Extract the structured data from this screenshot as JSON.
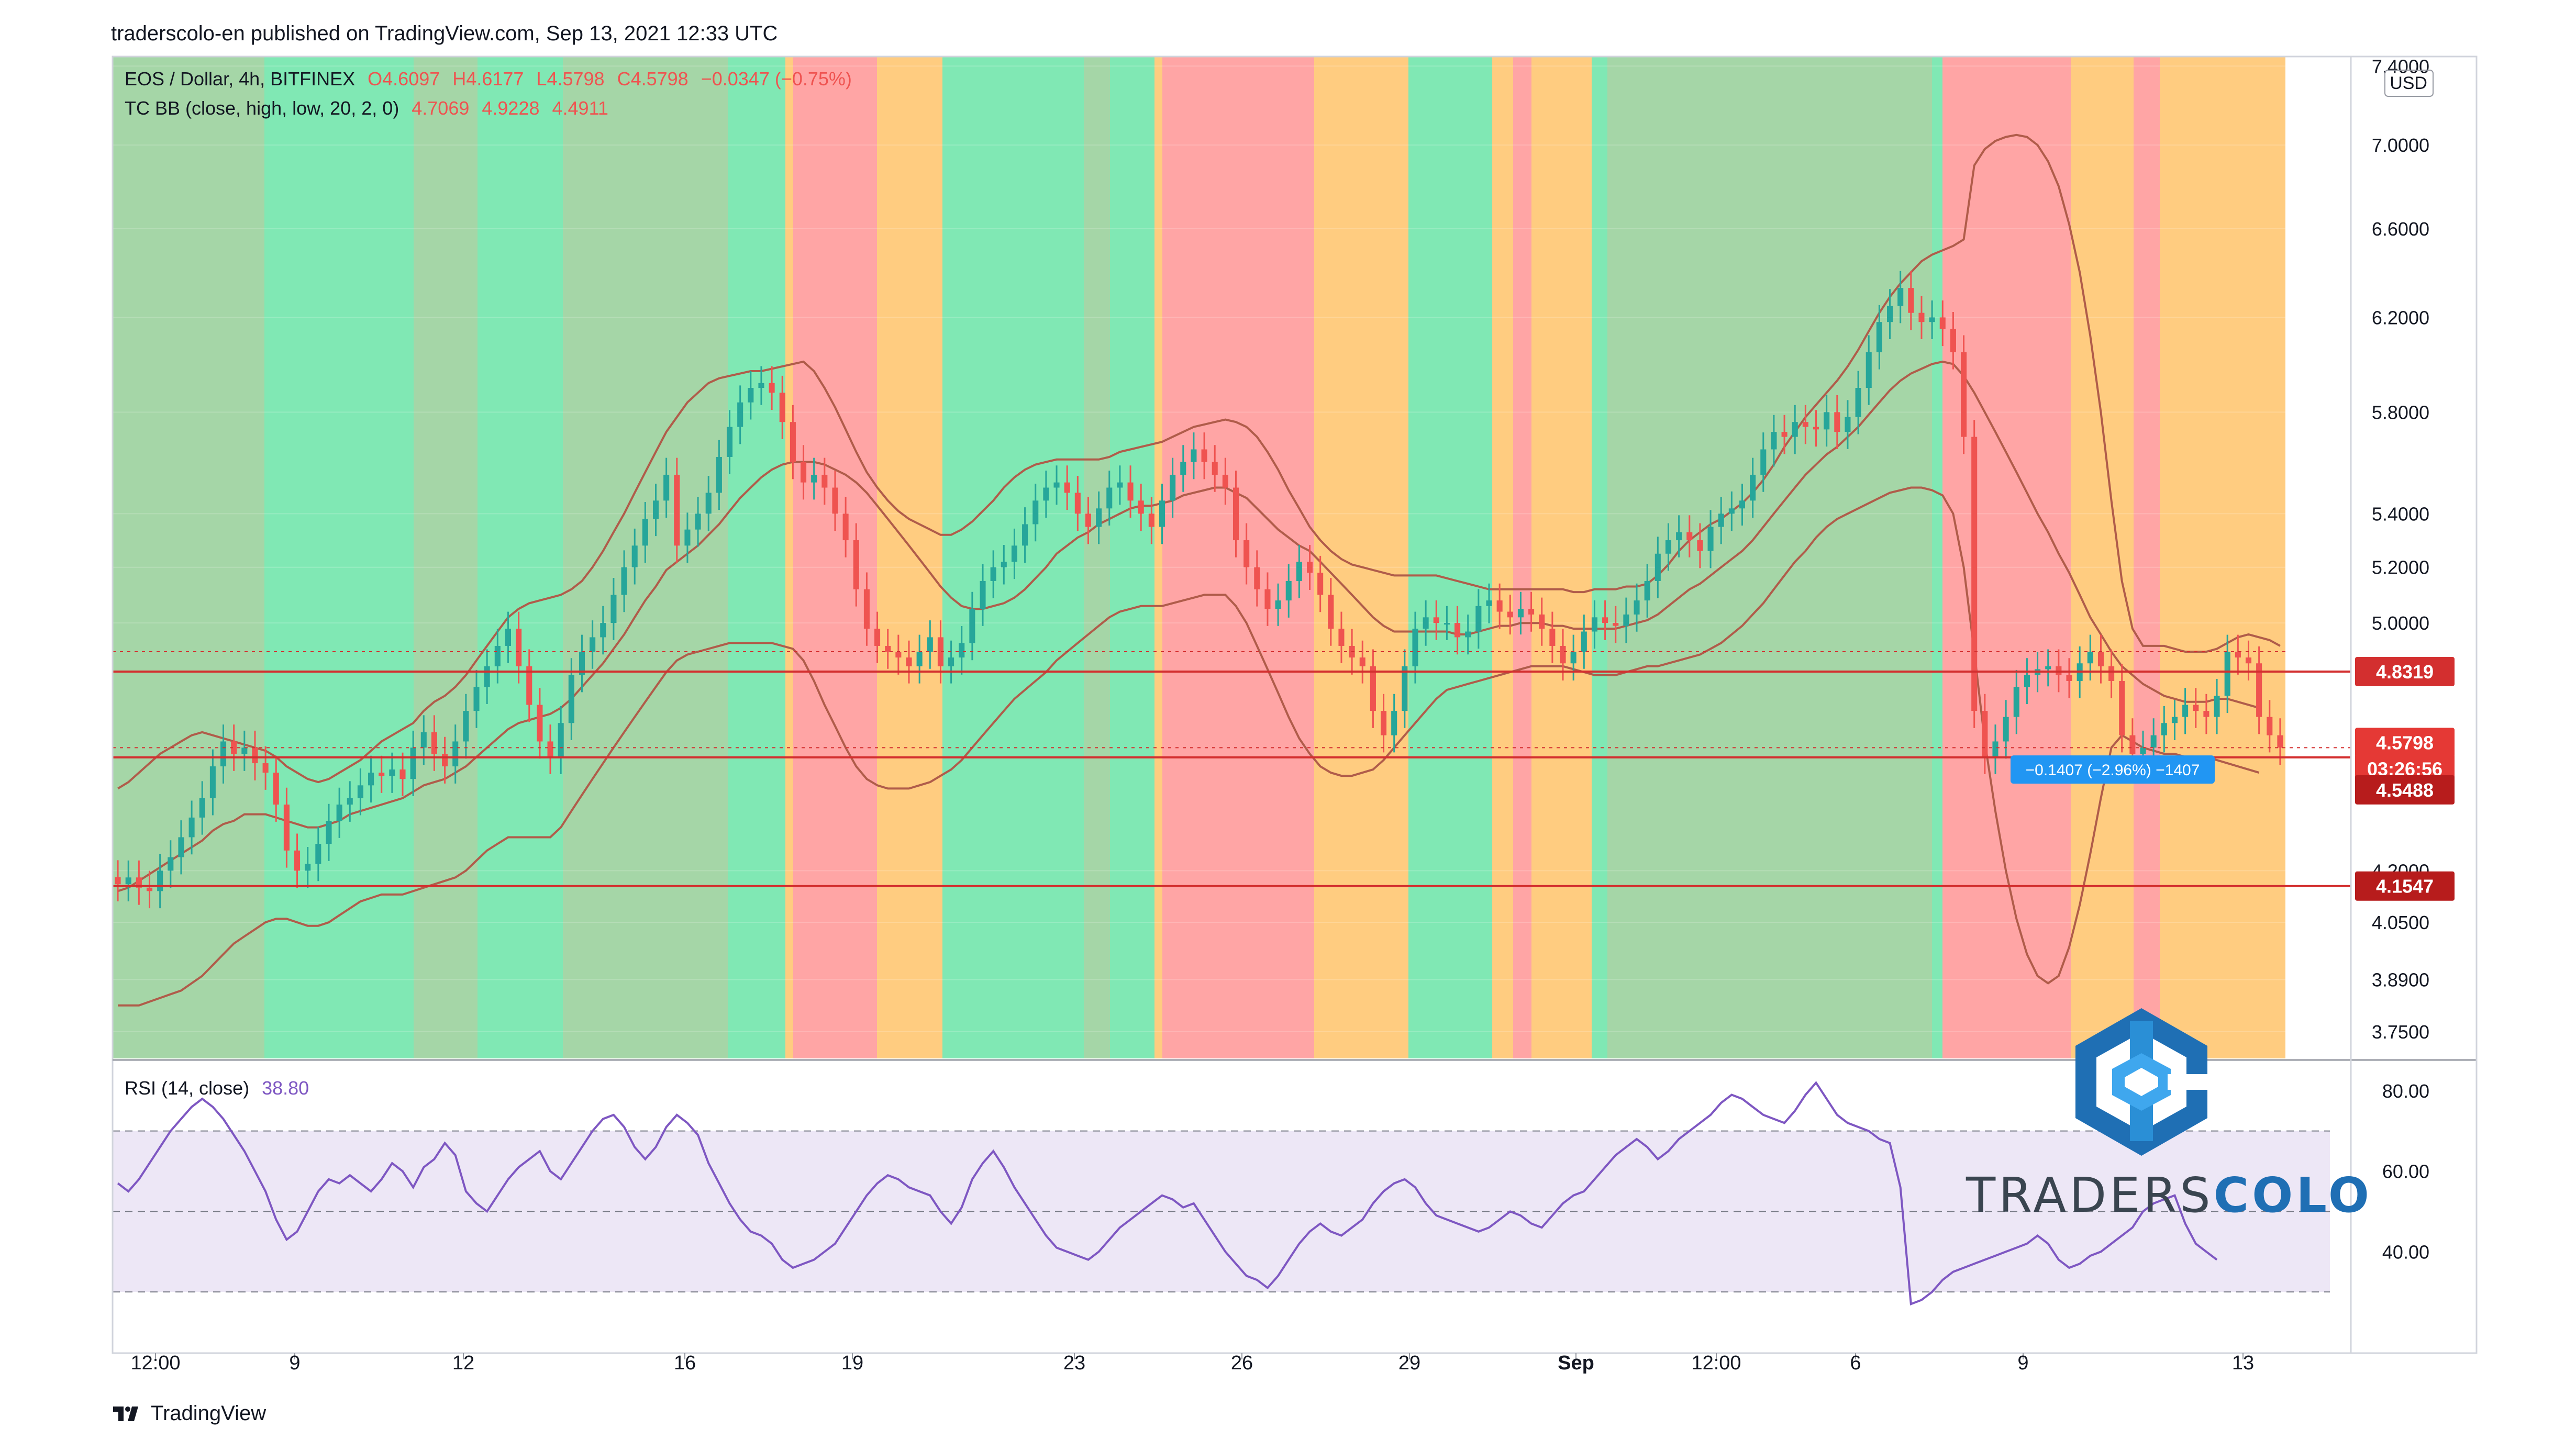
{
  "header": {
    "published": "traderscolo-en published on TradingView.com, Sep 13, 2021 12:33 UTC"
  },
  "legend": {
    "symbol": "EOS / Dollar, 4h, BITFINEX",
    "o": "O4.6097",
    "h": "H4.6177",
    "l": "L4.5798",
    "c": "C4.5798",
    "chg": "−0.0347 (−0.75%)",
    "bb_label": "TC BB (close, high, low, 20, 2, 0)",
    "bb_v1": "4.7069",
    "bb_v2": "4.9228",
    "bb_v3": "4.4911",
    "rsi_label": "RSI (14, close)",
    "rsi_val": "38.80"
  },
  "footer": {
    "tradingview": "TradingView"
  },
  "brand": {
    "part1": "TRADERS",
    "part2": "COLO"
  },
  "colors": {
    "up": "#26a69a",
    "down": "#ef5350",
    "bg_dark_green": "#a5d6a7",
    "bg_green": "#80e8b4",
    "bg_red": "#ffa5a5",
    "bg_orange": "#ffcc80",
    "band_line": "#b05c4a",
    "hline": "#d32f2f",
    "rsi": "#7e57c2",
    "rsi_band": "#ede7f6"
  },
  "chart_data": {
    "type": "candlestick",
    "title": "EOS / Dollar, 4h, BITFINEX",
    "price_axis": {
      "unit": "USD",
      "ticks": [
        "7.4000",
        "7.0000",
        "6.6000",
        "6.2000",
        "5.8000",
        "5.4000",
        "5.2000",
        "5.0000",
        "4.2000",
        "4.0500",
        "3.8900",
        "3.7500"
      ],
      "ylim": [
        3.68,
        7.45
      ],
      "scale": "log"
    },
    "time_axis": {
      "ticks": [
        "12:00",
        "9",
        "12",
        "16",
        "19",
        "23",
        "26",
        "29",
        "Sep",
        "12:00",
        "6",
        "9",
        "13"
      ]
    },
    "price_labels": [
      {
        "value": "4.8319",
        "kind": "line"
      },
      {
        "value": "4.5798",
        "kind": "last"
      },
      {
        "value": "03:26:56",
        "kind": "countdown"
      },
      {
        "value": "4.5488",
        "kind": "line"
      },
      {
        "value": "4.1547",
        "kind": "line"
      }
    ],
    "horizontal_lines": [
      4.8319,
      4.5488,
      4.1547
    ],
    "measure_tooltip": "−0.1407 (−2.96%) −1407",
    "close": [
      4.16,
      4.18,
      4.15,
      4.14,
      4.2,
      4.24,
      4.3,
      4.36,
      4.42,
      4.52,
      4.6,
      4.56,
      4.58,
      4.53,
      4.5,
      4.4,
      4.26,
      4.2,
      4.22,
      4.28,
      4.35,
      4.4,
      4.42,
      4.46,
      4.5,
      4.49,
      4.51,
      4.48,
      4.58,
      4.63,
      4.56,
      4.52,
      4.6,
      4.7,
      4.78,
      4.85,
      4.92,
      4.98,
      4.85,
      4.72,
      4.6,
      4.55,
      4.66,
      4.82,
      4.9,
      4.95,
      5.0,
      5.1,
      5.2,
      5.28,
      5.38,
      5.45,
      5.55,
      5.28,
      5.34,
      5.4,
      5.48,
      5.62,
      5.74,
      5.84,
      5.9,
      5.92,
      5.88,
      5.76,
      5.6,
      5.52,
      5.55,
      5.5,
      5.4,
      5.3,
      5.12,
      4.98,
      4.92,
      4.9,
      4.88,
      4.85,
      4.9,
      4.95,
      4.85,
      4.88,
      4.93,
      5.05,
      5.15,
      5.2,
      5.22,
      5.28,
      5.36,
      5.45,
      5.5,
      5.52,
      5.48,
      5.4,
      5.35,
      5.42,
      5.5,
      5.52,
      5.45,
      5.4,
      5.35,
      5.45,
      5.55,
      5.6,
      5.65,
      5.6,
      5.55,
      5.5,
      5.3,
      5.2,
      5.12,
      5.05,
      5.08,
      5.15,
      5.22,
      5.18,
      5.1,
      4.98,
      4.92,
      4.88,
      4.85,
      4.7,
      4.62,
      4.7,
      4.85,
      4.98,
      5.02,
      5.0,
      5.0,
      4.95,
      4.97,
      5.06,
      5.08,
      5.04,
      5.02,
      5.05,
      5.03,
      4.98,
      4.92,
      4.86,
      4.9,
      4.97,
      5.02,
      5.0,
      4.99,
      5.03,
      5.08,
      5.15,
      5.25,
      5.3,
      5.33,
      5.3,
      5.26,
      5.35,
      5.4,
      5.42,
      5.45,
      5.55,
      5.65,
      5.72,
      5.7,
      5.76,
      5.74,
      5.73,
      5.8,
      5.72,
      5.78,
      5.9,
      6.05,
      6.18,
      6.25,
      6.33,
      6.22,
      6.18,
      6.2,
      6.15,
      6.05,
      5.7,
      4.7,
      4.55,
      4.6,
      4.68,
      4.78,
      4.82,
      4.84,
      4.85,
      4.82,
      4.8,
      4.86,
      4.9,
      4.85,
      4.8,
      4.62,
      4.56,
      4.58,
      4.62,
      4.66,
      4.68,
      4.72,
      4.7,
      4.68,
      4.75,
      4.9,
      4.88,
      4.86,
      4.68,
      4.62,
      4.58
    ],
    "bb_upper": [
      4.45,
      4.47,
      4.5,
      4.53,
      4.56,
      4.58,
      4.6,
      4.62,
      4.63,
      4.62,
      4.61,
      4.6,
      4.59,
      4.58,
      4.57,
      4.55,
      4.52,
      4.5,
      4.48,
      4.47,
      4.48,
      4.5,
      4.52,
      4.54,
      4.57,
      4.6,
      4.62,
      4.64,
      4.66,
      4.7,
      4.73,
      4.75,
      4.78,
      4.82,
      4.87,
      4.92,
      4.97,
      5.02,
      5.05,
      5.07,
      5.08,
      5.09,
      5.1,
      5.12,
      5.15,
      5.2,
      5.26,
      5.33,
      5.4,
      5.48,
      5.56,
      5.64,
      5.72,
      5.78,
      5.84,
      5.88,
      5.92,
      5.94,
      5.95,
      5.96,
      5.97,
      5.97,
      5.98,
      5.99,
      6.0,
      6.01,
      5.97,
      5.9,
      5.82,
      5.73,
      5.64,
      5.56,
      5.5,
      5.45,
      5.41,
      5.38,
      5.36,
      5.34,
      5.32,
      5.32,
      5.34,
      5.37,
      5.41,
      5.45,
      5.5,
      5.54,
      5.57,
      5.59,
      5.6,
      5.61,
      5.61,
      5.61,
      5.61,
      5.61,
      5.62,
      5.64,
      5.65,
      5.66,
      5.67,
      5.68,
      5.7,
      5.72,
      5.74,
      5.75,
      5.76,
      5.77,
      5.76,
      5.74,
      5.7,
      5.64,
      5.57,
      5.49,
      5.42,
      5.35,
      5.3,
      5.26,
      5.23,
      5.21,
      5.2,
      5.19,
      5.18,
      5.17,
      5.17,
      5.17,
      5.17,
      5.17,
      5.16,
      5.15,
      5.14,
      5.13,
      5.12,
      5.12,
      5.12,
      5.12,
      5.12,
      5.12,
      5.12,
      5.12,
      5.11,
      5.11,
      5.12,
      5.12,
      5.12,
      5.13,
      5.13,
      5.14,
      5.17,
      5.21,
      5.26,
      5.3,
      5.33,
      5.36,
      5.38,
      5.41,
      5.44,
      5.48,
      5.53,
      5.59,
      5.66,
      5.72,
      5.78,
      5.83,
      5.88,
      5.93,
      5.99,
      6.06,
      6.14,
      6.22,
      6.29,
      6.35,
      6.4,
      6.45,
      6.48,
      6.5,
      6.52,
      6.55,
      6.9,
      6.98,
      7.02,
      7.04,
      7.05,
      7.04,
      7.0,
      6.92,
      6.8,
      6.62,
      6.4,
      6.12,
      5.8,
      5.45,
      5.15,
      4.98,
      4.92,
      4.92,
      4.92,
      4.91,
      4.9,
      4.9,
      4.9,
      4.91,
      4.93,
      4.95,
      4.96,
      4.95,
      4.94,
      4.92
    ],
    "bb_basis": [
      4.14,
      4.15,
      4.17,
      4.19,
      4.21,
      4.23,
      4.25,
      4.27,
      4.29,
      4.32,
      4.34,
      4.35,
      4.37,
      4.37,
      4.37,
      4.36,
      4.35,
      4.34,
      4.33,
      4.33,
      4.34,
      4.35,
      4.37,
      4.38,
      4.39,
      4.4,
      4.41,
      4.42,
      4.44,
      4.46,
      4.47,
      4.48,
      4.5,
      4.52,
      4.55,
      4.58,
      4.61,
      4.64,
      4.66,
      4.67,
      4.68,
      4.69,
      4.71,
      4.74,
      4.78,
      4.82,
      4.86,
      4.91,
      4.96,
      5.02,
      5.08,
      5.13,
      5.19,
      5.22,
      5.25,
      5.28,
      5.32,
      5.36,
      5.41,
      5.46,
      5.5,
      5.54,
      5.57,
      5.59,
      5.6,
      5.6,
      5.6,
      5.59,
      5.57,
      5.55,
      5.52,
      5.48,
      5.43,
      5.38,
      5.33,
      5.28,
      5.23,
      5.18,
      5.13,
      5.09,
      5.06,
      5.05,
      5.05,
      5.06,
      5.07,
      5.09,
      5.12,
      5.16,
      5.2,
      5.25,
      5.28,
      5.31,
      5.33,
      5.36,
      5.38,
      5.4,
      5.42,
      5.43,
      5.43,
      5.44,
      5.45,
      5.47,
      5.48,
      5.49,
      5.5,
      5.5,
      5.48,
      5.46,
      5.42,
      5.38,
      5.34,
      5.31,
      5.28,
      5.26,
      5.22,
      5.18,
      5.14,
      5.1,
      5.06,
      5.02,
      4.99,
      4.97,
      4.97,
      4.97,
      4.97,
      4.97,
      4.97,
      4.96,
      4.96,
      4.97,
      4.98,
      4.99,
      4.99,
      5.0,
      5.0,
      5.0,
      4.99,
      4.99,
      4.98,
      4.98,
      4.98,
      4.98,
      4.98,
      4.99,
      5.0,
      5.01,
      5.03,
      5.06,
      5.09,
      5.12,
      5.14,
      5.17,
      5.2,
      5.23,
      5.26,
      5.3,
      5.35,
      5.4,
      5.45,
      5.5,
      5.55,
      5.59,
      5.63,
      5.66,
      5.7,
      5.74,
      5.79,
      5.84,
      5.89,
      5.93,
      5.96,
      5.98,
      6.0,
      6.01,
      6.0,
      5.95,
      5.88,
      5.8,
      5.72,
      5.64,
      5.56,
      5.48,
      5.4,
      5.33,
      5.25,
      5.18,
      5.1,
      5.02,
      4.96,
      4.9,
      4.85,
      4.82,
      4.79,
      4.77,
      4.75,
      4.74,
      4.73,
      4.73,
      4.73,
      4.74,
      4.74,
      4.73,
      4.72,
      4.71
    ],
    "bb_lower": [
      3.82,
      3.82,
      3.82,
      3.83,
      3.84,
      3.85,
      3.86,
      3.88,
      3.9,
      3.93,
      3.96,
      3.99,
      4.01,
      4.03,
      4.05,
      4.06,
      4.06,
      4.05,
      4.04,
      4.04,
      4.05,
      4.07,
      4.09,
      4.11,
      4.12,
      4.13,
      4.13,
      4.13,
      4.14,
      4.15,
      4.16,
      4.17,
      4.18,
      4.2,
      4.23,
      4.26,
      4.28,
      4.3,
      4.3,
      4.3,
      4.3,
      4.3,
      4.33,
      4.38,
      4.43,
      4.48,
      4.53,
      4.58,
      4.63,
      4.68,
      4.73,
      4.78,
      4.83,
      4.87,
      4.89,
      4.9,
      4.91,
      4.92,
      4.93,
      4.93,
      4.93,
      4.93,
      4.93,
      4.92,
      4.91,
      4.87,
      4.8,
      4.72,
      4.65,
      4.58,
      4.52,
      4.48,
      4.46,
      4.45,
      4.45,
      4.45,
      4.46,
      4.47,
      4.49,
      4.51,
      4.54,
      4.58,
      4.62,
      4.66,
      4.7,
      4.74,
      4.77,
      4.8,
      4.83,
      4.87,
      4.9,
      4.93,
      4.96,
      4.99,
      5.02,
      5.04,
      5.05,
      5.06,
      5.06,
      5.06,
      5.07,
      5.08,
      5.09,
      5.1,
      5.1,
      5.1,
      5.06,
      5.0,
      4.92,
      4.84,
      4.76,
      4.68,
      4.61,
      4.56,
      4.52,
      4.5,
      4.49,
      4.49,
      4.5,
      4.51,
      4.54,
      4.58,
      4.62,
      4.66,
      4.7,
      4.74,
      4.77,
      4.78,
      4.79,
      4.8,
      4.81,
      4.82,
      4.83,
      4.84,
      4.85,
      4.85,
      4.85,
      4.85,
      4.84,
      4.83,
      4.82,
      4.82,
      4.82,
      4.83,
      4.84,
      4.85,
      4.85,
      4.86,
      4.87,
      4.88,
      4.89,
      4.91,
      4.93,
      4.96,
      4.99,
      5.03,
      5.07,
      5.12,
      5.17,
      5.22,
      5.26,
      5.31,
      5.35,
      5.38,
      5.4,
      5.42,
      5.44,
      5.46,
      5.48,
      5.49,
      5.5,
      5.5,
      5.49,
      5.47,
      5.4,
      5.2,
      4.9,
      4.6,
      4.38,
      4.2,
      4.06,
      3.96,
      3.9,
      3.88,
      3.9,
      3.98,
      4.1,
      4.25,
      4.42,
      4.58,
      4.62,
      4.6,
      4.58,
      4.57,
      4.56,
      4.56,
      4.55,
      4.55,
      4.55,
      4.54,
      4.53,
      4.52,
      4.51,
      4.5
    ],
    "rsi": {
      "label": "RSI (14, close)",
      "ticks": [
        "80.00",
        "60.00",
        "40.00"
      ],
      "levels": [
        70,
        50,
        30
      ],
      "ylim": [
        20,
        87
      ],
      "values": [
        57,
        55,
        58,
        62,
        66,
        70,
        73,
        76,
        78,
        76,
        73,
        69,
        65,
        60,
        55,
        48,
        43,
        45,
        50,
        55,
        58,
        57,
        59,
        57,
        55,
        58,
        62,
        60,
        56,
        61,
        63,
        67,
        64,
        55,
        52,
        50,
        54,
        58,
        61,
        63,
        65,
        60,
        58,
        62,
        66,
        70,
        73,
        74,
        71,
        66,
        63,
        66,
        71,
        74,
        72,
        69,
        62,
        57,
        52,
        48,
        45,
        44,
        42,
        38,
        36,
        37,
        38,
        40,
        42,
        46,
        50,
        54,
        57,
        59,
        58,
        56,
        55,
        54,
        50,
        47,
        51,
        58,
        62,
        65,
        61,
        56,
        52,
        48,
        44,
        41,
        40,
        39,
        38,
        40,
        43,
        46,
        48,
        50,
        52,
        54,
        53,
        51,
        52,
        48,
        44,
        40,
        37,
        34,
        33,
        31,
        34,
        38,
        42,
        45,
        47,
        45,
        44,
        46,
        48,
        52,
        55,
        57,
        58,
        56,
        52,
        49,
        48,
        47,
        46,
        45,
        46,
        48,
        50,
        49,
        47,
        46,
        49,
        52,
        54,
        55,
        58,
        61,
        64,
        66,
        68,
        66,
        63,
        65,
        68,
        70,
        72,
        74,
        77,
        79,
        78,
        76,
        74,
        73,
        72,
        75,
        79,
        82,
        78,
        74,
        72,
        71,
        70,
        68,
        67,
        56,
        27,
        28,
        30,
        33,
        35,
        36,
        37,
        38,
        39,
        40,
        41,
        42,
        44,
        42,
        38,
        36,
        37,
        39,
        40,
        42,
        44,
        46,
        50,
        52,
        53,
        54,
        47,
        42,
        40,
        38
      ]
    }
  }
}
